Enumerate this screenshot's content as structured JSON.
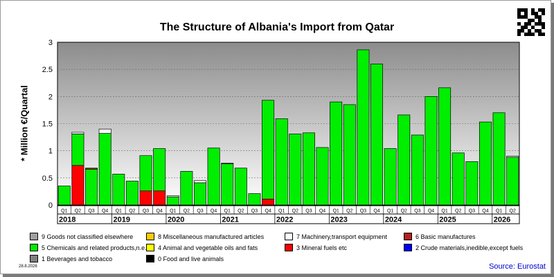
{
  "title": "The Structure of Albania's Import from Qatar",
  "date_stamp": "28.8.2026",
  "source": "Source: Eurostat",
  "qr_icon": "qr-code-icon",
  "chart_data": {
    "type": "bar",
    "stacked": true,
    "title": "The Structure of Albania's Import from Qatar",
    "ylabel": "* Million €/Quartal",
    "xlabel": "",
    "ylim": [
      0,
      3
    ],
    "yticks": [
      "0",
      "0.5",
      "1",
      "1.5",
      "2",
      "2.5",
      "3"
    ],
    "grid": true,
    "legend_position": "bottom",
    "categories": [
      "Q1",
      "Q2",
      "Q3",
      "Q4",
      "Q1",
      "Q2",
      "Q3",
      "Q4",
      "Q1",
      "Q2",
      "Q3",
      "Q4",
      "Q1",
      "Q2",
      "Q3",
      "Q4",
      "Q1",
      "Q2",
      "Q3",
      "Q4",
      "Q1",
      "Q2",
      "Q3",
      "Q4",
      "Q1",
      "Q2",
      "Q3",
      "Q4",
      "Q1",
      "Q2",
      "Q3",
      "Q4",
      "Q1",
      "Q2"
    ],
    "years": [
      "2018",
      "2019",
      "2020",
      "2021",
      "2022",
      "2023",
      "2024",
      "2025",
      "2026"
    ],
    "series": [
      {
        "name": "3 Mineral fuels etc",
        "color": "#ff0000",
        "values": [
          0,
          0.73,
          0,
          0,
          0,
          0,
          0.26,
          0.26,
          0,
          0,
          0,
          0,
          0,
          0,
          0,
          0.11,
          0,
          0,
          0,
          0,
          0,
          0,
          0,
          0,
          0,
          0,
          0,
          0,
          0,
          0,
          0,
          0,
          0,
          0
        ]
      },
      {
        "name": "5 Chemicals and related products,n.e.s.",
        "color": "#00ee00",
        "values": [
          0.35,
          0.58,
          0.66,
          1.32,
          0.57,
          0.44,
          0.65,
          0.78,
          0.15,
          0.62,
          0.41,
          1.05,
          0.76,
          0.68,
          0.21,
          1.82,
          1.59,
          1.31,
          1.33,
          1.06,
          1.9,
          1.85,
          2.86,
          2.6,
          1.04,
          1.66,
          1.29,
          2.0,
          2.16,
          0.96,
          0.8,
          1.53,
          1.7,
          0.88
        ]
      },
      {
        "name": "6 Basic manufactures",
        "color": "#b22222",
        "values": [
          0,
          0,
          0.02,
          0,
          0,
          0,
          0,
          0,
          0,
          0,
          0,
          0,
          0,
          0,
          0,
          0,
          0,
          0,
          0,
          0,
          0,
          0,
          0,
          0,
          0,
          0,
          0,
          0,
          0,
          0,
          0,
          0,
          0,
          0
        ]
      },
      {
        "name": "7 Machinery,transport equipment",
        "color": "#ffffff",
        "values": [
          0,
          0.03,
          0,
          0.08,
          0,
          0,
          0,
          0,
          0.02,
          0,
          0.04,
          0,
          0.01,
          0,
          0,
          0,
          0,
          0,
          0,
          0,
          0,
          0,
          0,
          0,
          0,
          0,
          0,
          0,
          0,
          0,
          0,
          0,
          0,
          0.02
        ]
      }
    ]
  },
  "legend": [
    {
      "label": "9 Goods not classified elsewhere",
      "color": "#a0a0a0"
    },
    {
      "label": "8 Miscellaneous manufactured articles",
      "color": "#ffcc00"
    },
    {
      "label": "7 Machinery,transport equipment",
      "color": "#ffffff"
    },
    {
      "label": "6 Basic manufactures",
      "color": "#b22222"
    },
    {
      "label": "5 Chemicals and related products,n.e.s.",
      "color": "#00ee00"
    },
    {
      "label": "4 Animal and vegetable oils and fats",
      "color": "#ffff00"
    },
    {
      "label": "3 Mineral fuels etc",
      "color": "#ff0000"
    },
    {
      "label": "2 Crude materials,inedible,except fuels",
      "color": "#0000ff"
    },
    {
      "label": "1 Beverages and tobacco",
      "color": "#808080"
    },
    {
      "label": "0 Food and live animals",
      "color": "#000000"
    }
  ]
}
